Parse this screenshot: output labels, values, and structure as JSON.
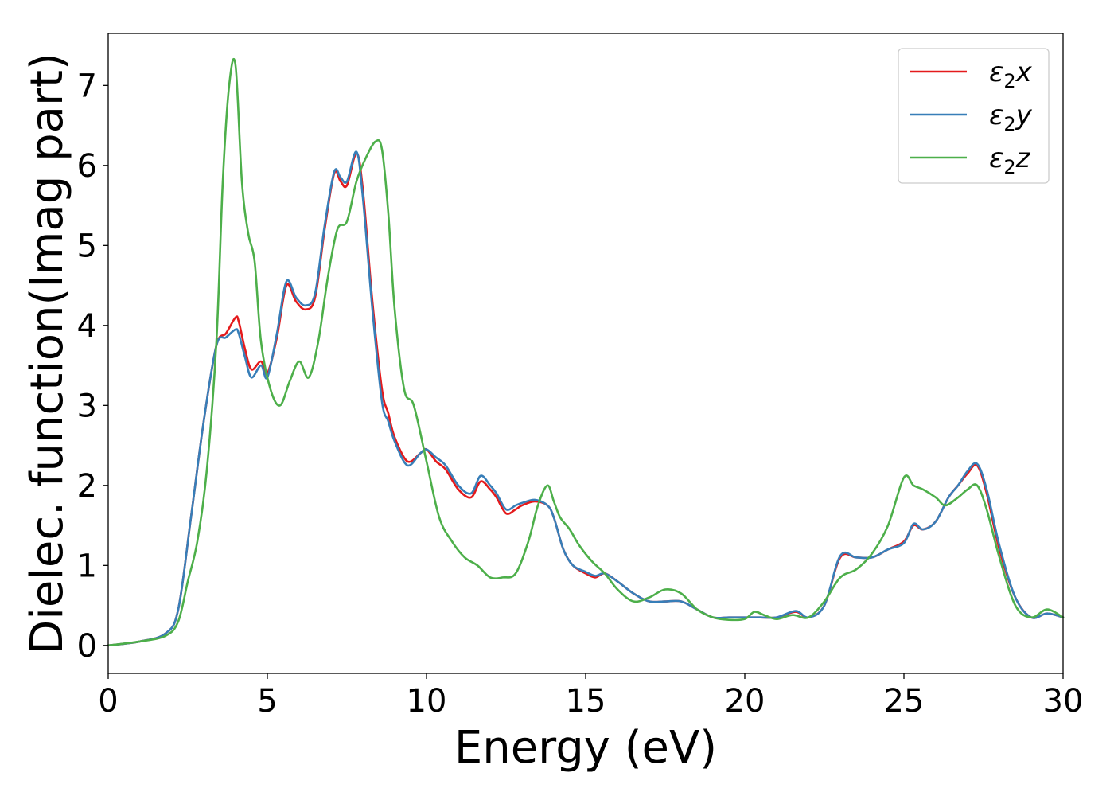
{
  "chart_data": {
    "type": "line",
    "xlabel": "Energy (eV)",
    "ylabel": "Dielec. function(Imag part)",
    "xlim": [
      0,
      30
    ],
    "ylim": [
      -0.35,
      7.65
    ],
    "xticks": [
      0,
      5,
      10,
      15,
      20,
      25,
      30
    ],
    "yticks": [
      0,
      1,
      2,
      3,
      4,
      5,
      6,
      7
    ],
    "grid": false,
    "legend_position": "top-right",
    "series": [
      {
        "name": "ε2x",
        "legend": {
          "base": "ε",
          "sub": "2",
          "suffix": "x"
        },
        "color": "#e41a1c",
        "x": [
          0,
          1,
          1.8,
          2.2,
          2.6,
          3.0,
          3.4,
          3.7,
          4.0,
          4.1,
          4.3,
          4.5,
          4.8,
          5.0,
          5.3,
          5.6,
          5.9,
          6.2,
          6.5,
          6.8,
          7.1,
          7.3,
          7.5,
          7.8,
          8.0,
          8.3,
          8.6,
          8.8,
          9.0,
          9.4,
          9.8,
          10.0,
          10.3,
          10.6,
          11.0,
          11.4,
          11.7,
          12.0,
          12.2,
          12.5,
          12.8,
          13.0,
          13.4,
          13.8,
          14.0,
          14.3,
          14.6,
          15.0,
          15.3,
          15.6,
          16.0,
          16.5,
          17.0,
          17.5,
          18.0,
          18.5,
          19.0,
          19.5,
          20.0,
          20.5,
          21.0,
          21.6,
          22.0,
          22.5,
          23.0,
          23.5,
          24.0,
          24.5,
          25.0,
          25.3,
          25.6,
          26.0,
          26.4,
          26.7,
          27.0,
          27.3,
          27.6,
          28.0,
          28.5,
          29.0,
          29.5,
          30.0
        ],
        "y": [
          0.0,
          0.05,
          0.15,
          0.45,
          1.6,
          2.8,
          3.75,
          3.9,
          4.1,
          4.05,
          3.7,
          3.45,
          3.55,
          3.4,
          3.85,
          4.5,
          4.3,
          4.2,
          4.35,
          5.2,
          5.9,
          5.8,
          5.75,
          6.15,
          5.7,
          4.3,
          3.2,
          2.9,
          2.6,
          2.3,
          2.4,
          2.45,
          2.3,
          2.2,
          1.95,
          1.85,
          2.05,
          1.95,
          1.85,
          1.65,
          1.7,
          1.75,
          1.8,
          1.75,
          1.6,
          1.2,
          1.0,
          0.9,
          0.85,
          0.9,
          0.8,
          0.65,
          0.55,
          0.55,
          0.55,
          0.45,
          0.35,
          0.35,
          0.35,
          0.35,
          0.35,
          0.42,
          0.35,
          0.5,
          1.1,
          1.1,
          1.1,
          1.2,
          1.3,
          1.5,
          1.45,
          1.55,
          1.85,
          2.0,
          2.15,
          2.25,
          1.9,
          1.2,
          0.6,
          0.35,
          0.4,
          0.35
        ]
      },
      {
        "name": "ε2y",
        "legend": {
          "base": "ε",
          "sub": "2",
          "suffix": "y"
        },
        "color": "#377eb8",
        "x": [
          0,
          1,
          1.8,
          2.2,
          2.6,
          3.0,
          3.4,
          3.7,
          4.0,
          4.1,
          4.3,
          4.5,
          4.8,
          5.0,
          5.3,
          5.6,
          5.9,
          6.2,
          6.5,
          6.8,
          7.1,
          7.3,
          7.5,
          7.8,
          8.0,
          8.3,
          8.6,
          8.8,
          9.0,
          9.4,
          9.8,
          10.0,
          10.3,
          10.6,
          11.0,
          11.4,
          11.7,
          12.0,
          12.2,
          12.5,
          12.8,
          13.0,
          13.4,
          13.8,
          14.0,
          14.3,
          14.6,
          15.0,
          15.3,
          15.6,
          16.0,
          16.5,
          17.0,
          17.5,
          18.0,
          18.5,
          19.0,
          19.5,
          20.0,
          20.5,
          21.0,
          21.6,
          22.0,
          22.5,
          23.0,
          23.5,
          24.0,
          24.5,
          25.0,
          25.3,
          25.6,
          26.0,
          26.4,
          26.7,
          27.0,
          27.3,
          27.6,
          28.0,
          28.5,
          29.0,
          29.5,
          30.0
        ],
        "y": [
          0.0,
          0.05,
          0.15,
          0.45,
          1.6,
          2.8,
          3.75,
          3.85,
          3.95,
          3.9,
          3.6,
          3.35,
          3.5,
          3.35,
          3.9,
          4.55,
          4.35,
          4.25,
          4.4,
          5.25,
          5.92,
          5.85,
          5.8,
          6.17,
          5.6,
          4.2,
          3.05,
          2.8,
          2.55,
          2.25,
          2.4,
          2.45,
          2.35,
          2.25,
          2.0,
          1.9,
          2.12,
          2.0,
          1.9,
          1.7,
          1.75,
          1.78,
          1.82,
          1.75,
          1.6,
          1.2,
          1.0,
          0.92,
          0.87,
          0.9,
          0.8,
          0.65,
          0.55,
          0.55,
          0.55,
          0.45,
          0.35,
          0.35,
          0.35,
          0.35,
          0.35,
          0.43,
          0.35,
          0.5,
          1.12,
          1.1,
          1.1,
          1.2,
          1.28,
          1.52,
          1.45,
          1.55,
          1.85,
          2.0,
          2.18,
          2.27,
          1.95,
          1.25,
          0.6,
          0.35,
          0.4,
          0.35
        ]
      },
      {
        "name": "ε2z",
        "legend": {
          "base": "ε",
          "sub": "2",
          "suffix": "z"
        },
        "color": "#4daf4a",
        "x": [
          0,
          1,
          1.8,
          2.2,
          2.5,
          2.8,
          3.1,
          3.4,
          3.6,
          3.8,
          4.0,
          4.2,
          4.4,
          4.6,
          4.8,
          5.1,
          5.4,
          5.7,
          6.0,
          6.3,
          6.6,
          6.9,
          7.2,
          7.5,
          7.8,
          8.1,
          8.4,
          8.6,
          8.8,
          9.0,
          9.3,
          9.6,
          10.0,
          10.4,
          10.8,
          11.2,
          11.6,
          12.0,
          12.4,
          12.8,
          13.2,
          13.5,
          13.8,
          14.0,
          14.2,
          14.5,
          14.8,
          15.2,
          15.6,
          16.0,
          16.5,
          17.0,
          17.5,
          18.0,
          18.5,
          19.0,
          19.5,
          20.0,
          20.3,
          20.6,
          21.0,
          21.5,
          22.0,
          22.5,
          23.0,
          23.5,
          24.0,
          24.5,
          25.0,
          25.3,
          25.6,
          26.0,
          26.3,
          26.7,
          27.0,
          27.3,
          27.6,
          28.0,
          28.5,
          29.0,
          29.5,
          30.0
        ],
        "y": [
          0.0,
          0.05,
          0.12,
          0.3,
          0.8,
          1.3,
          2.2,
          3.8,
          5.8,
          7.0,
          7.25,
          5.8,
          5.15,
          4.8,
          3.8,
          3.2,
          3.0,
          3.3,
          3.55,
          3.35,
          3.8,
          4.6,
          5.2,
          5.3,
          5.8,
          6.1,
          6.3,
          6.2,
          5.4,
          4.2,
          3.2,
          3.0,
          2.3,
          1.6,
          1.3,
          1.1,
          1.0,
          0.85,
          0.85,
          0.9,
          1.3,
          1.75,
          2.0,
          1.8,
          1.6,
          1.45,
          1.25,
          1.05,
          0.9,
          0.7,
          0.55,
          0.6,
          0.7,
          0.65,
          0.45,
          0.35,
          0.32,
          0.33,
          0.42,
          0.38,
          0.33,
          0.38,
          0.35,
          0.55,
          0.85,
          0.95,
          1.15,
          1.5,
          2.1,
          2.0,
          1.95,
          1.85,
          1.75,
          1.85,
          1.95,
          2.0,
          1.7,
          1.1,
          0.5,
          0.35,
          0.45,
          0.35
        ]
      }
    ]
  }
}
